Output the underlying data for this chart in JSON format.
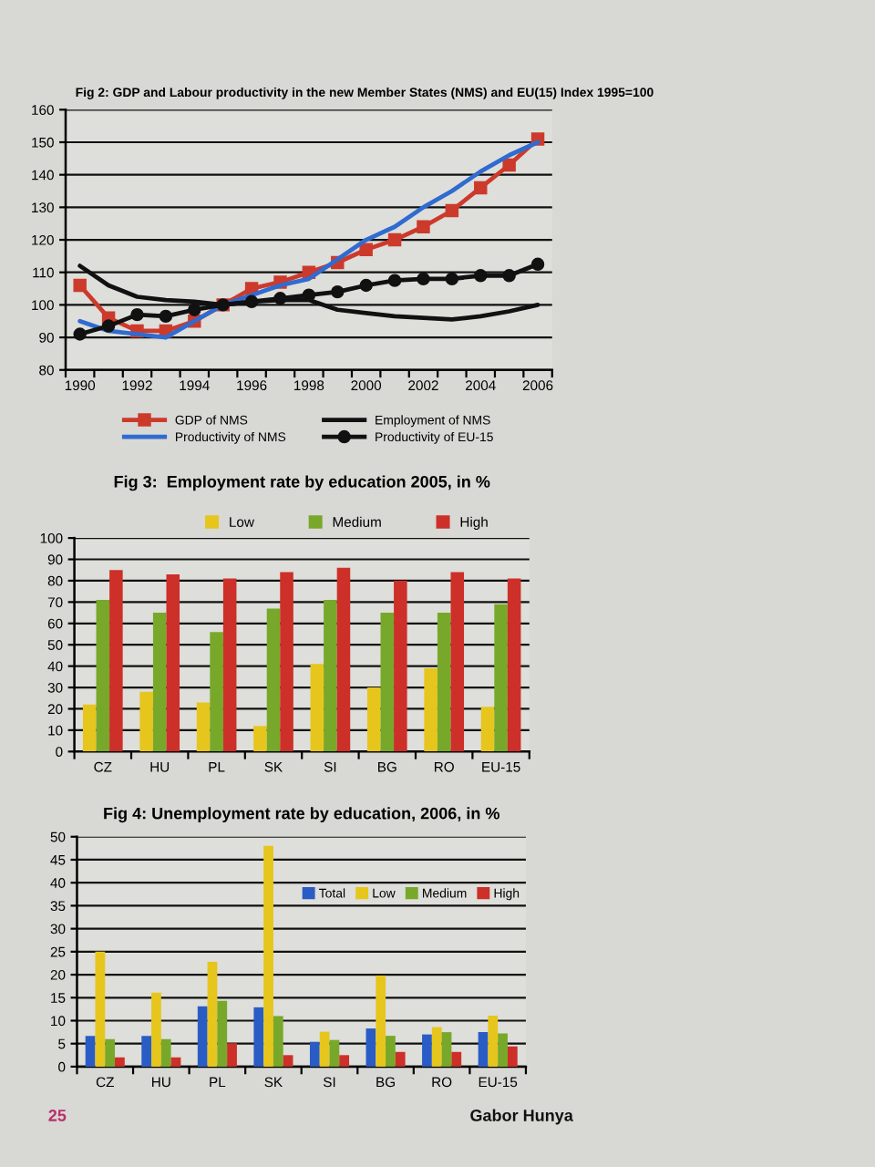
{
  "chart_data": [
    {
      "type": "line",
      "title": "Fig 2: GDP and Labour productivity in the new Member States (NMS) and EU(15) Index 1995=100",
      "categories": [
        "1990",
        null,
        "1992",
        null,
        "1994",
        null,
        "1996",
        null,
        "1998",
        null,
        "2000",
        null,
        "2002",
        null,
        "2004",
        null,
        "2006"
      ],
      "series": [
        {
          "name": "GDP of NMS",
          "color": "#cc3a2c",
          "marker": "square",
          "values": [
            106,
            96,
            92,
            92,
            95,
            100,
            105,
            107,
            110,
            113,
            117,
            120,
            124,
            129,
            136,
            143,
            151
          ]
        },
        {
          "name": "Productivity of NMS",
          "color": "#2f6bd0",
          "marker": "none",
          "values": [
            95,
            92,
            91,
            90,
            95,
            100,
            103,
            106,
            108,
            114,
            120,
            124,
            130,
            135,
            141,
            146,
            150
          ]
        },
        {
          "name": "Employment of NMS",
          "color": "#111111",
          "marker": "none",
          "values": [
            112,
            106,
            102.5,
            101.5,
            101,
            100,
            101,
            101.5,
            101.5,
            98.5,
            97.5,
            96.5,
            96,
            95.5,
            96.5,
            98,
            100
          ]
        },
        {
          "name": "Productivity of EU-15",
          "color": "#111111",
          "marker": "circle",
          "values": [
            91,
            93.5,
            97,
            96.5,
            98.5,
            100,
            101,
            102,
            103,
            104,
            106,
            107.5,
            108,
            108,
            109,
            109,
            112.5
          ]
        }
      ],
      "ylim": [
        80,
        160
      ],
      "yticks": [
        80,
        90,
        100,
        110,
        120,
        130,
        140,
        150,
        160
      ],
      "grid": "y",
      "legend": "bottom"
    },
    {
      "type": "bar",
      "title": "Fig 3:  Employment rate by education 2005, in %",
      "categories": [
        "CZ",
        "HU",
        "PL",
        "SK",
        "SI",
        "BG",
        "RO",
        "EU-15"
      ],
      "series": [
        {
          "name": "Low",
          "color": "#e6c61c",
          "values": [
            22,
            28,
            23,
            12,
            41,
            30,
            39,
            21
          ]
        },
        {
          "name": "Medium",
          "color": "#78a82a",
          "values": [
            71,
            65,
            56,
            67,
            71,
            65,
            65,
            69
          ]
        },
        {
          "name": "High",
          "color": "#cc3028",
          "values": [
            85,
            83,
            81,
            84,
            86,
            80,
            84,
            81
          ]
        }
      ],
      "ylim": [
        0,
        100
      ],
      "yticks": [
        0,
        10,
        20,
        30,
        40,
        50,
        60,
        70,
        80,
        90,
        100
      ],
      "grid": "y",
      "legend": "top"
    },
    {
      "type": "bar",
      "title": "Fig 4: Unemployment rate by education, 2006, in %",
      "categories": [
        "CZ",
        "HU",
        "PL",
        "SK",
        "SI",
        "BG",
        "RO",
        "EU-15"
      ],
      "series": [
        {
          "name": "Total",
          "color": "#2a5cc6",
          "values": [
            6.7,
            6.7,
            13.1,
            12.9,
            5.4,
            8.3,
            7,
            7.5
          ]
        },
        {
          "name": "Low",
          "color": "#e6c61c",
          "values": [
            25,
            16.1,
            22.8,
            48,
            7.6,
            19.8,
            8.6,
            11.1
          ]
        },
        {
          "name": "Medium",
          "color": "#78a82a",
          "values": [
            6,
            6,
            14.3,
            11,
            5.8,
            6.7,
            7.5,
            7.2
          ]
        },
        {
          "name": "High",
          "color": "#cc3028",
          "values": [
            2,
            2,
            5.1,
            2.5,
            2.5,
            3.2,
            3.2,
            4.4
          ]
        }
      ],
      "ylim": [
        0,
        50
      ],
      "yticks": [
        0,
        5,
        10,
        15,
        20,
        25,
        30,
        35,
        40,
        45,
        50
      ],
      "grid": "y",
      "legend": "top right",
      "annotations": [
        "25",
        "Gabor Hunya"
      ]
    }
  ]
}
